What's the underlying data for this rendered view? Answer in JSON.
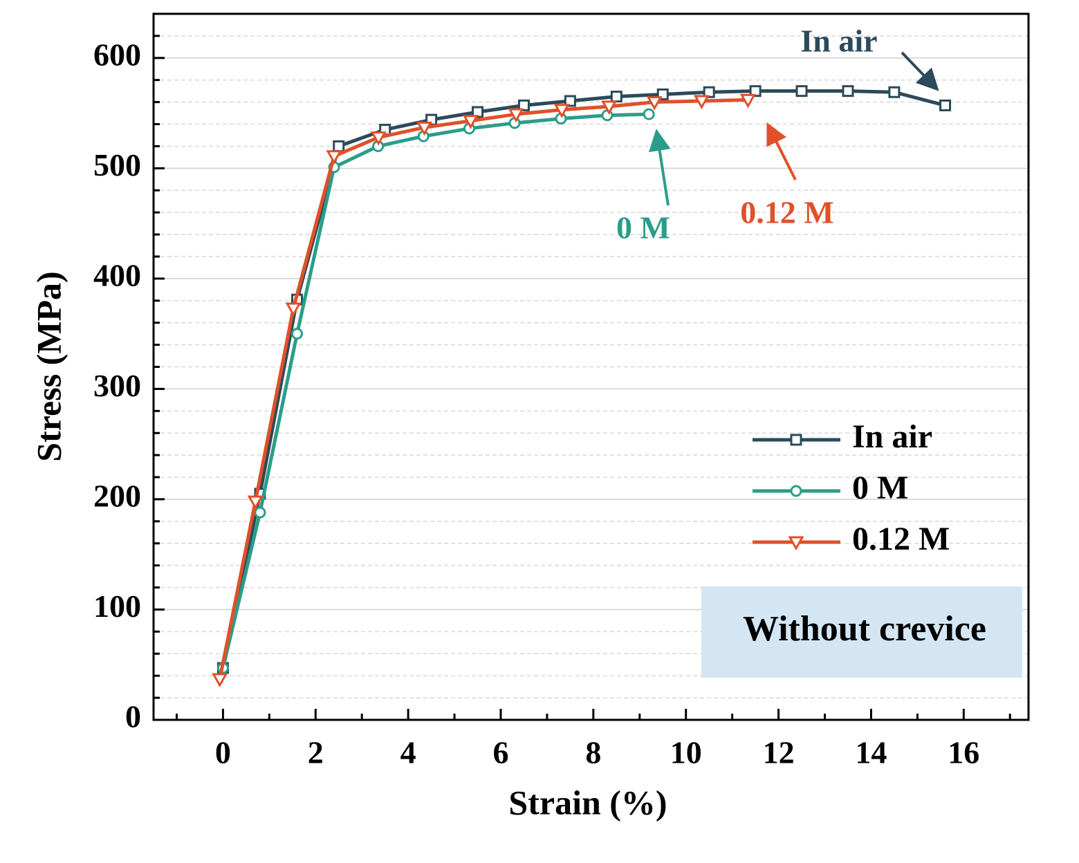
{
  "chart_data": {
    "type": "line",
    "xlabel": "Strain (%)",
    "ylabel": "Stress (MPa)",
    "xlim": [
      -1.5,
      17.4
    ],
    "ylim": [
      0,
      640
    ],
    "xticks": [
      0,
      2,
      4,
      6,
      8,
      10,
      12,
      14,
      16
    ],
    "x_minor_ticks": [
      -1,
      1,
      3,
      5,
      7,
      9,
      11,
      13,
      15,
      17
    ],
    "yticks": [
      0,
      100,
      200,
      300,
      400,
      500,
      600
    ],
    "y_minor_ticks": [
      20,
      40,
      60,
      80,
      120,
      140,
      160,
      180,
      220,
      240,
      260,
      280,
      320,
      340,
      360,
      380,
      420,
      440,
      460,
      480,
      520,
      540,
      560,
      580,
      620,
      640
    ],
    "grid": true,
    "series": [
      {
        "name": "In air",
        "color": "#2b4a5a",
        "marker": "square",
        "x": [
          0,
          0.8,
          1.6,
          2.5,
          3.5,
          4.5,
          5.5,
          6.5,
          7.5,
          8.5,
          9.5,
          10.5,
          11.5,
          12.5,
          13.5,
          14.5,
          15.6
        ],
        "values": [
          47,
          205,
          381,
          520,
          535,
          544,
          551,
          557,
          561,
          565,
          567,
          569,
          570,
          570,
          570,
          569,
          557
        ]
      },
      {
        "name": "0 M",
        "color": "#2a9d8a",
        "marker": "circle",
        "x": [
          0,
          0.8,
          1.6,
          2.4,
          3.35,
          4.33,
          5.32,
          6.3,
          7.3,
          8.3,
          9.2
        ],
        "values": [
          47,
          188,
          350,
          501,
          520,
          529,
          536,
          541,
          545,
          548,
          549
        ]
      },
      {
        "name": "0.12 M",
        "color": "#e0502a",
        "marker": "triangle-down",
        "x": [
          -0.07,
          0.7,
          1.52,
          2.4,
          3.36,
          4.35,
          5.35,
          6.33,
          7.32,
          8.34,
          9.32,
          10.34,
          11.34
        ],
        "values": [
          37,
          198,
          373,
          511,
          528,
          537,
          543,
          549,
          553,
          556,
          560,
          561,
          562
        ]
      }
    ],
    "annotations": [
      "In air",
      "0 M",
      "0.12 M"
    ],
    "inset_label": "Without crevice"
  }
}
